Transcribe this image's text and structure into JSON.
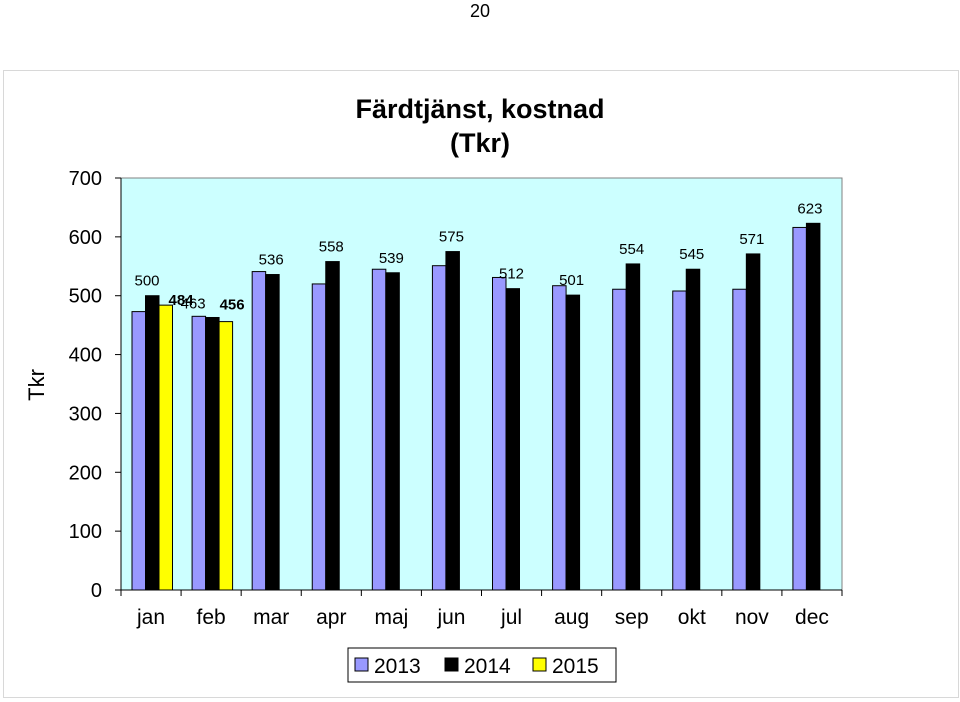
{
  "page": {
    "number": "20"
  },
  "chart_data": {
    "type": "bar",
    "title_line1": "Färdtjänst, kostnad",
    "title_line2": "(Tkr)",
    "xlabel": "",
    "ylabel": "Tkr",
    "ylim": [
      0,
      700
    ],
    "yticks": [
      0,
      100,
      200,
      300,
      400,
      500,
      600,
      700
    ],
    "grid": false,
    "legend_position": "bottom",
    "plot_background": "#ccffff",
    "categories": [
      "jan",
      "feb",
      "mar",
      "apr",
      "maj",
      "jun",
      "jul",
      "aug",
      "sep",
      "okt",
      "nov",
      "dec"
    ],
    "series": [
      {
        "name": "2013",
        "color": "#9999ff",
        "values": [
          473,
          465,
          541,
          520,
          545,
          551,
          531,
          517,
          511,
          508,
          511,
          616
        ]
      },
      {
        "name": "2014",
        "color": "#000000",
        "values": [
          500,
          463,
          536,
          558,
          539,
          575,
          512,
          501,
          554,
          545,
          571,
          623
        ]
      },
      {
        "name": "2015",
        "color": "#ffff00",
        "values": [
          484,
          456,
          null,
          null,
          null,
          null,
          null,
          null,
          null,
          null,
          null,
          null
        ]
      }
    ],
    "data_labels": [
      {
        "text": "500",
        "bold": false
      },
      {
        "text": "484",
        "bold": true
      },
      {
        "text": "463",
        "bold": false
      },
      {
        "text": "456",
        "bold": true
      },
      {
        "text": "536",
        "bold": false
      },
      {
        "text": "558",
        "bold": false
      },
      {
        "text": "539",
        "bold": false
      },
      {
        "text": "575",
        "bold": false
      },
      {
        "text": "512",
        "bold": false
      },
      {
        "text": "501",
        "bold": false
      },
      {
        "text": "554",
        "bold": false
      },
      {
        "text": "545",
        "bold": false
      },
      {
        "text": "571",
        "bold": false
      },
      {
        "text": "623",
        "bold": false
      }
    ]
  }
}
